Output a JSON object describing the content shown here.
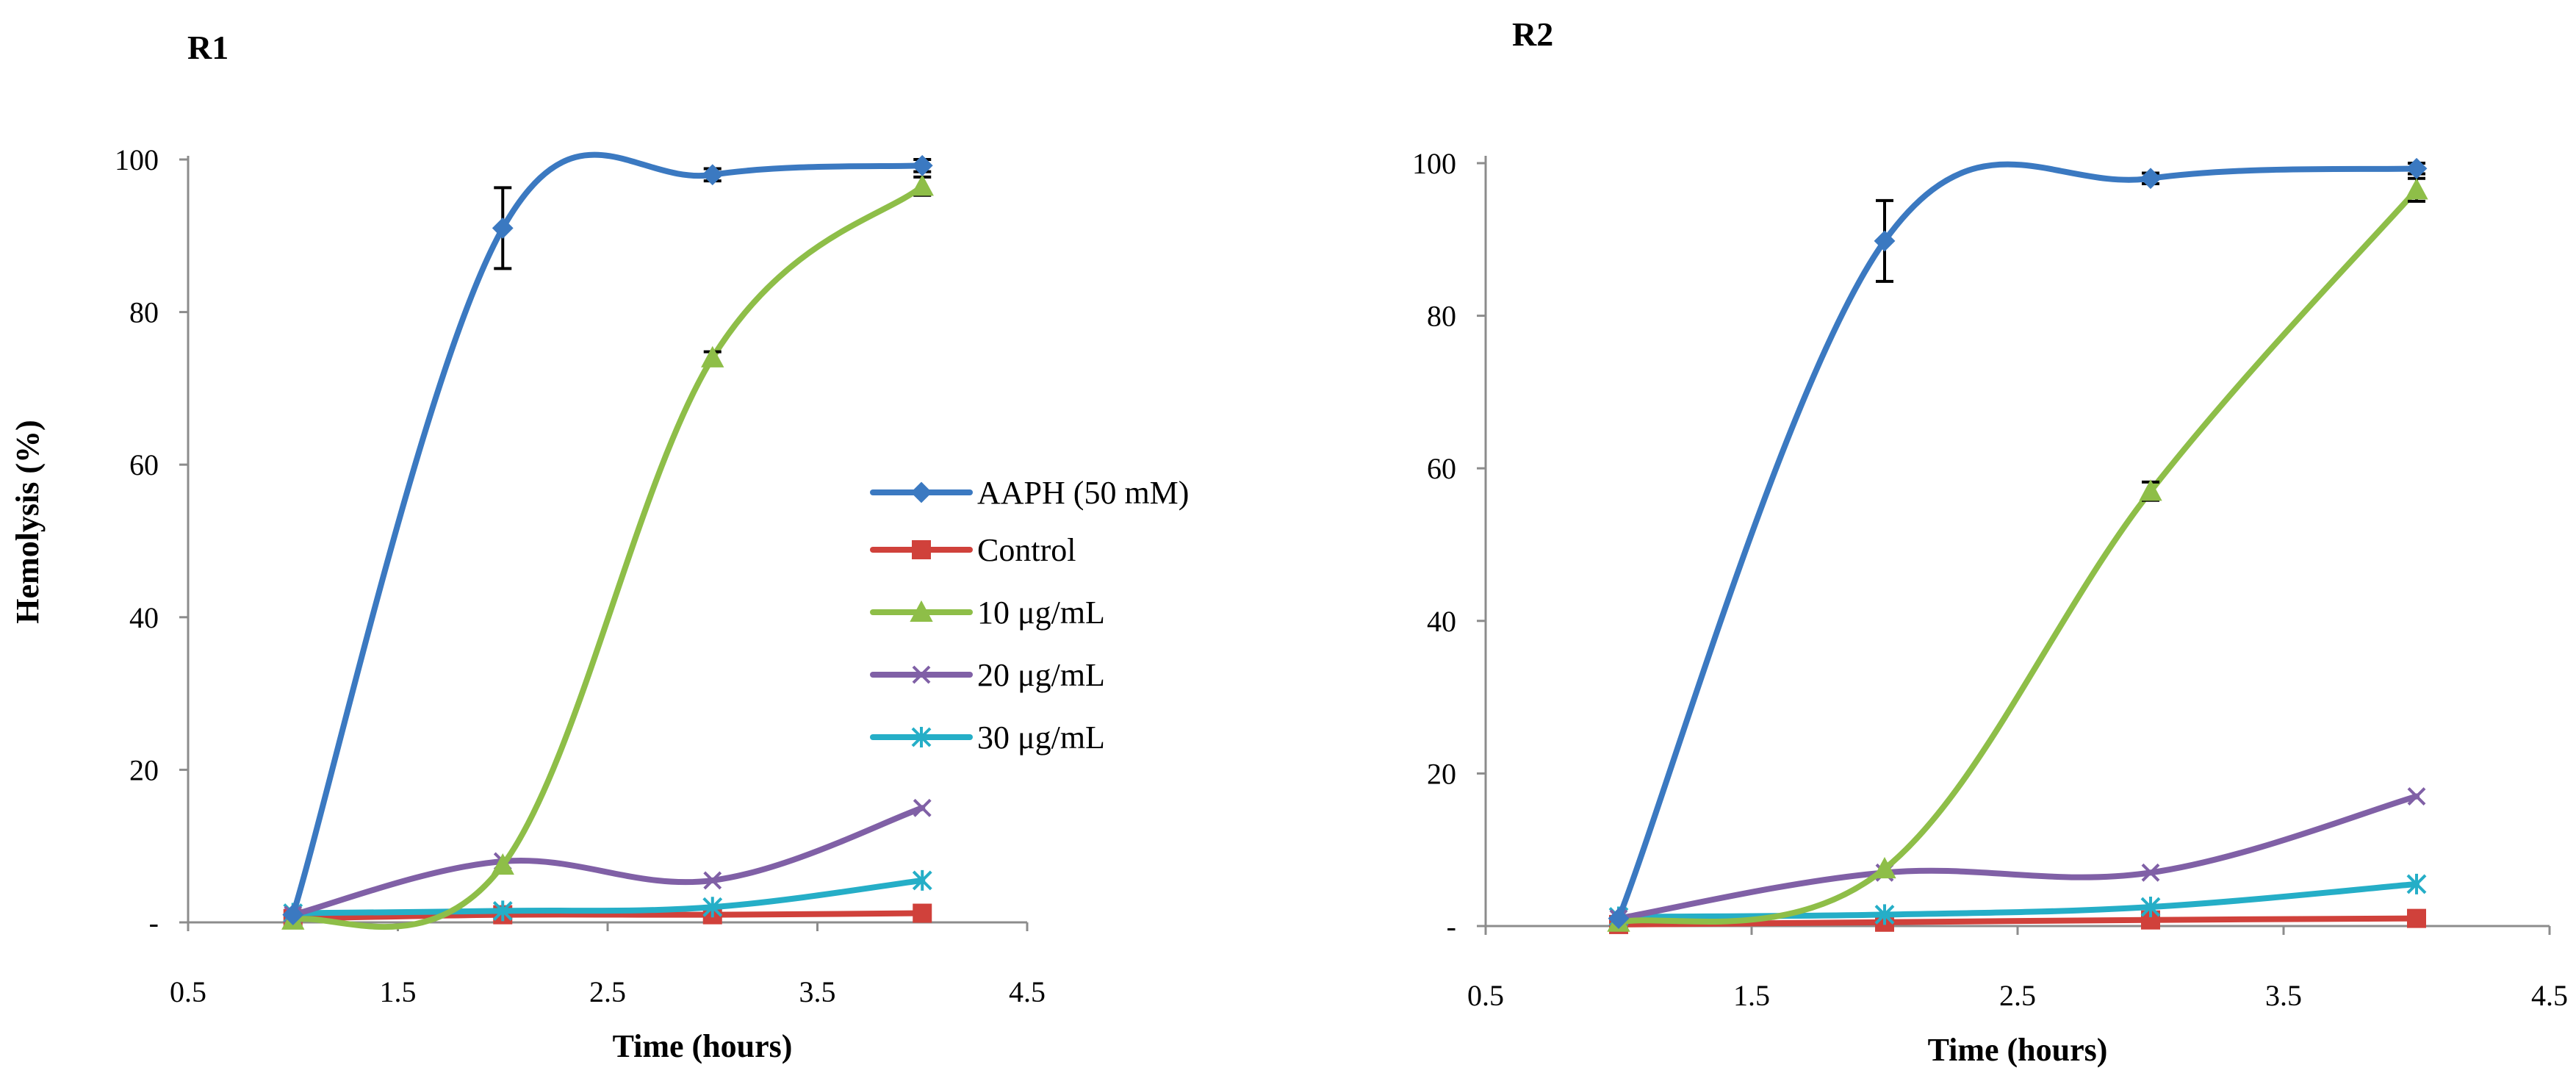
{
  "figure": {
    "shared_ylabel": "Hemolysis (%)",
    "colors": {
      "aaph": "#3b79c1",
      "control": "#d0413b",
      "c10": "#8ebe48",
      "c20": "#8060a6",
      "c30": "#25aec7"
    }
  },
  "chart_data": [
    {
      "type": "line",
      "panel": "R1",
      "title": "R1",
      "xlabel": "Time (hours)",
      "ylabel": "Hemolysis (%)",
      "xlim": [
        0.5,
        4.5
      ],
      "ylim": [
        0,
        100
      ],
      "xticks": [
        "0.5",
        "1.5",
        "2.5",
        "3.5",
        "4.5"
      ],
      "yticks": [
        "-",
        "20",
        "40",
        "60",
        "80",
        "100"
      ],
      "legend_position": "center-right",
      "x": [
        1,
        2,
        3,
        4
      ],
      "series": [
        {
          "name": "AAPH (50 mM)",
          "key": "aaph",
          "marker": "diamond",
          "values": [
            1,
            91,
            98,
            99.2
          ],
          "errors": [
            0,
            5.3,
            0.8,
            0.8
          ]
        },
        {
          "name": "Control",
          "key": "control",
          "marker": "square",
          "values": [
            0.5,
            1,
            1,
            1.2
          ],
          "errors": [
            0,
            0,
            0,
            0
          ]
        },
        {
          "name": "10 μg/mL",
          "key": "c10",
          "marker": "triangle",
          "values": [
            0.3,
            7.5,
            74,
            96.5
          ],
          "errors": [
            0,
            0,
            0.8,
            1.2
          ]
        },
        {
          "name": "20 μg/mL",
          "key": "c20",
          "marker": "x",
          "values": [
            1,
            8,
            5.5,
            15
          ],
          "errors": [
            0,
            0,
            0,
            0
          ]
        },
        {
          "name": "30 μg/mL",
          "key": "c30",
          "marker": "asterisk",
          "values": [
            1.2,
            1.5,
            2,
            5.5
          ],
          "errors": [
            0,
            0,
            0,
            0
          ]
        }
      ]
    },
    {
      "type": "line",
      "panel": "R2",
      "title": "R2",
      "xlabel": "Time (hours)",
      "ylabel": "",
      "xlim": [
        0.5,
        4.5
      ],
      "ylim": [
        0,
        100
      ],
      "xticks": [
        "0.5",
        "1.5",
        "2.5",
        "3.5",
        "4.5"
      ],
      "yticks": [
        "-",
        "20",
        "40",
        "60",
        "80",
        "100"
      ],
      "legend_position": "none",
      "x": [
        1,
        2,
        3,
        4
      ],
      "series": [
        {
          "name": "AAPH (50 mM)",
          "key": "aaph",
          "marker": "diamond",
          "values": [
            1,
            89.8,
            98,
            99.3
          ],
          "errors": [
            0,
            5.3,
            0.7,
            0.7
          ]
        },
        {
          "name": "Control",
          "key": "control",
          "marker": "square",
          "values": [
            0.2,
            0.5,
            0.8,
            1
          ],
          "errors": [
            0,
            0,
            0,
            0
          ]
        },
        {
          "name": "10 μg/mL",
          "key": "c10",
          "marker": "triangle",
          "values": [
            0.5,
            7.5,
            57,
            96.5
          ],
          "errors": [
            0,
            0,
            1.2,
            1.5
          ]
        },
        {
          "name": "20 μg/mL",
          "key": "c20",
          "marker": "x",
          "values": [
            1,
            7,
            7,
            17
          ],
          "errors": [
            0,
            0,
            0,
            0
          ]
        },
        {
          "name": "30 μg/mL",
          "key": "c30",
          "marker": "asterisk",
          "values": [
            1.2,
            1.5,
            2.5,
            5.5
          ],
          "errors": [
            0,
            0,
            0,
            0
          ]
        }
      ]
    }
  ]
}
